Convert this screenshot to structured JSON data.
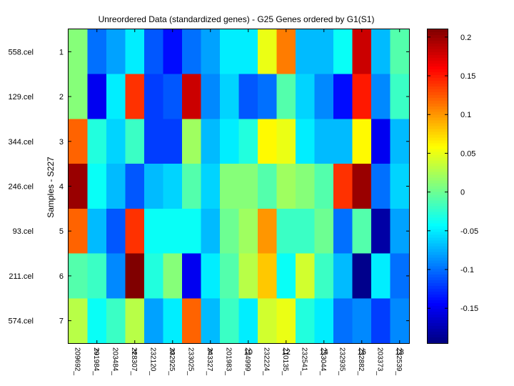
{
  "chart_data": {
    "type": "heatmap",
    "title": "Unreordered Data (standardized genes) - G25 Genes ordered by G1(S1)",
    "ylabel": "Samples - S227",
    "xlabel": "",
    "x_ticks": [
      "2",
      "4",
      "6",
      "8",
      "10",
      "12",
      "14",
      "16",
      "18"
    ],
    "y_ticks": [
      "1",
      "2",
      "3",
      "4",
      "5",
      "6",
      "7"
    ],
    "sample_labels": [
      "558.cel",
      "129.cel",
      "344.cel",
      "246.cel",
      "93.cel",
      "211.cel",
      "574.cel"
    ],
    "gene_labels": [
      "209692_",
      "201984_",
      "203484_",
      "228307_",
      "232120_",
      "232925_",
      "233025_",
      "243327_",
      "201983_",
      "224999_",
      "232224_",
      "210135_",
      "232541_",
      "233044_",
      "232935_",
      "232882_",
      "203373_",
      "232539_"
    ],
    "colorbar": {
      "min": -0.195,
      "max": 0.21,
      "ticks": [
        -0.15,
        -0.1,
        -0.05,
        0,
        0.05,
        0.1,
        0.15,
        0.2
      ],
      "tick_labels": [
        "-0.15",
        "-0.1",
        "-0.05",
        "0",
        "0.05",
        "0.1",
        "0.15",
        "0.2"
      ]
    },
    "values": [
      [
        0.01,
        -0.1,
        -0.08,
        -0.05,
        -0.11,
        -0.14,
        -0.1,
        -0.08,
        -0.05,
        -0.05,
        0.05,
        0.11,
        -0.07,
        -0.07,
        -0.04,
        0.18,
        -0.07,
        -0.01
      ],
      [
        0.01,
        -0.15,
        -0.05,
        0.14,
        -0.12,
        -0.11,
        0.18,
        -0.09,
        -0.06,
        -0.11,
        -0.1,
        -0.01,
        -0.06,
        -0.09,
        -0.14,
        0.15,
        -0.09,
        -0.02
      ],
      [
        0.12,
        -0.03,
        -0.06,
        -0.02,
        -0.12,
        -0.12,
        0.02,
        -0.07,
        -0.05,
        -0.03,
        0.06,
        0.05,
        -0.05,
        -0.07,
        -0.07,
        0.06,
        -0.15,
        -0.07
      ],
      [
        0.2,
        -0.04,
        -0.07,
        -0.11,
        -0.07,
        -0.06,
        -0.01,
        -0.06,
        0.01,
        0.01,
        -0.01,
        0.02,
        0.01,
        -0.01,
        0.14,
        0.2,
        -0.1,
        -0.06
      ],
      [
        0.12,
        -0.07,
        -0.11,
        0.14,
        -0.04,
        -0.04,
        -0.04,
        -0.07,
        0.0,
        0.02,
        0.1,
        -0.02,
        -0.02,
        0.0,
        -0.1,
        -0.01,
        -0.18,
        -0.08
      ],
      [
        -0.01,
        -0.02,
        -0.09,
        0.21,
        -0.03,
        0.01,
        -0.15,
        -0.05,
        -0.01,
        0.03,
        0.08,
        -0.04,
        0.04,
        -0.02,
        -0.07,
        -0.19,
        -0.05,
        -0.1
      ],
      [
        0.03,
        -0.04,
        -0.02,
        0.03,
        -0.08,
        -0.05,
        0.12,
        -0.07,
        -0.02,
        -0.05,
        0.04,
        0.05,
        -0.03,
        -0.05,
        -0.1,
        -0.09,
        -0.12,
        -0.09
      ]
    ]
  }
}
